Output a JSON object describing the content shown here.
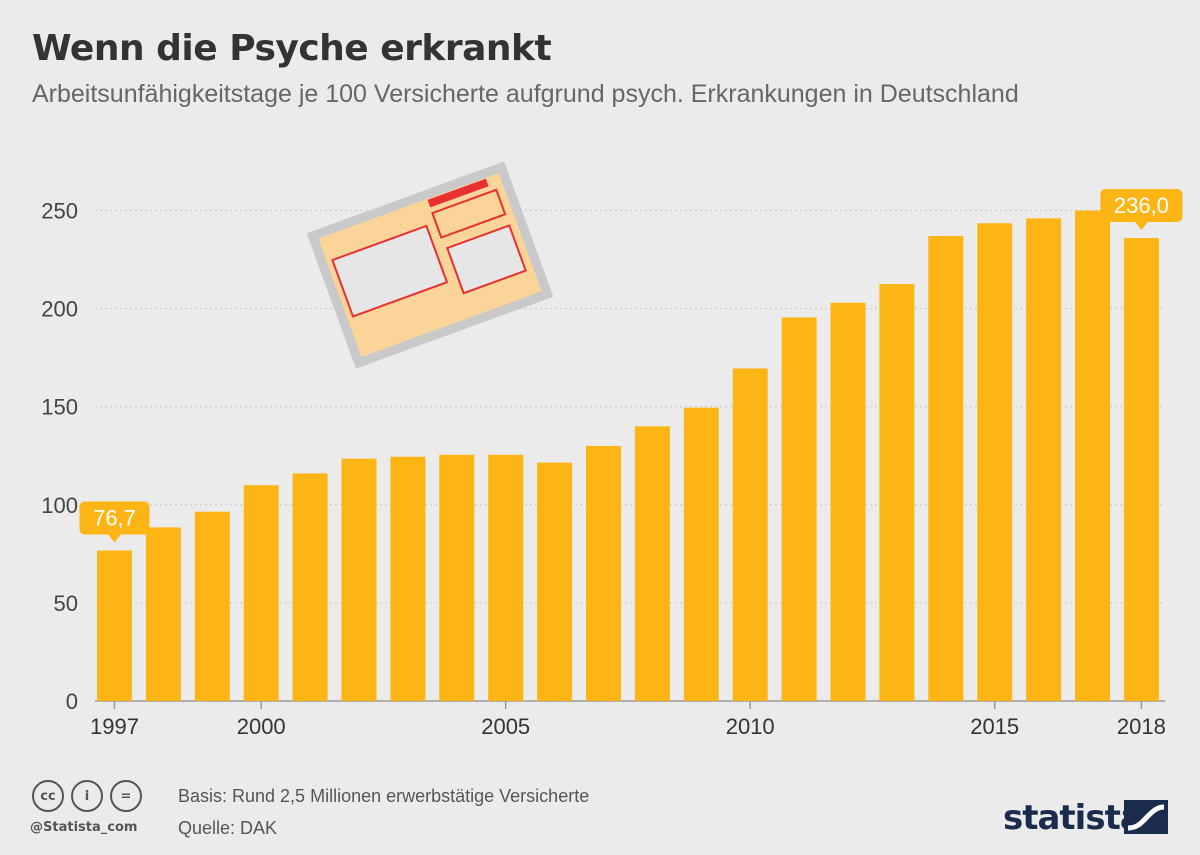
{
  "header": {
    "title": "Wenn die Psyche erkrankt",
    "subtitle": "Arbeitsunfähigkeitstage je 100 Versicherte aufgrund psych. Erkrankungen in Deutschland"
  },
  "chart_data": {
    "type": "bar",
    "title": "Wenn die Psyche erkrankt",
    "subtitle": "Arbeitsunfähigkeitstage je 100 Versicherte aufgrund psych. Erkrankungen in Deutschland",
    "categories": [
      "1997",
      "1998",
      "1999",
      "2000",
      "2001",
      "2002",
      "2003",
      "2004",
      "2005",
      "2006",
      "2007",
      "2008",
      "2009",
      "2010",
      "2011",
      "2012",
      "2013",
      "2014",
      "2015",
      "2016",
      "2017",
      "2018"
    ],
    "values": [
      76.7,
      88.5,
      96.5,
      110,
      116,
      123.5,
      124.5,
      125.5,
      125.5,
      121.5,
      130,
      140,
      149.5,
      169.5,
      195.5,
      203,
      212.5,
      237,
      243.5,
      246,
      250,
      236.0
    ],
    "x_tick_labels": [
      "1997",
      "2000",
      "2005",
      "2010",
      "2015",
      "2018"
    ],
    "y_ticks": [
      0,
      50,
      100,
      150,
      200,
      250
    ],
    "ylim": [
      0,
      250
    ],
    "grid": true,
    "bar_color": "#fdb515",
    "callouts": [
      {
        "category": "1997",
        "label": "76,7"
      },
      {
        "category": "2018",
        "label": "236,0"
      }
    ],
    "xlabel": "",
    "ylabel": ""
  },
  "illustration": {
    "icon": "sick-note-icon",
    "colors": {
      "frame": "#cccccc",
      "paper": "#fbd49a",
      "accent": "#e83030",
      "box": "#e6e6e6"
    }
  },
  "footer": {
    "cc_icons": [
      "cc-icon",
      "by-icon",
      "nd-icon"
    ],
    "cc_labels": [
      "cc",
      "i",
      "="
    ],
    "handle": "@Statista_com",
    "basis": "Basis: Rund 2,5 Millionen erwerbstätige Versicherte",
    "source": "Quelle: DAK",
    "brand": "statista"
  }
}
